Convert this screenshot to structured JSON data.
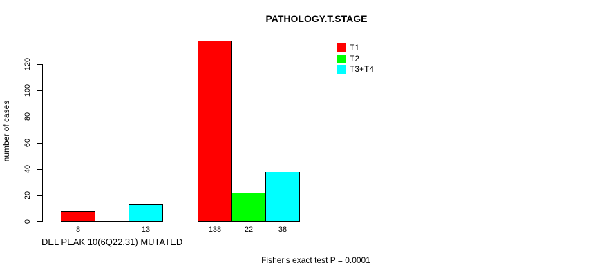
{
  "chart_data": {
    "type": "bar",
    "title": "PATHOLOGY.T.STAGE",
    "ylabel": "number of cases",
    "xlabel": "DEL PEAK 10(6Q22.31) MUTATED",
    "footer": "Fisher's exact test P = 0.0001",
    "y_ticks": [
      0,
      20,
      40,
      60,
      80,
      100,
      120
    ],
    "ylim": [
      0,
      138
    ],
    "grid": false,
    "legend_position": "top-right",
    "series": [
      {
        "name": "T1",
        "color": "#ff0000",
        "values": [
          8,
          138
        ]
      },
      {
        "name": "T2",
        "color": "#00ff00",
        "values": [
          0,
          22
        ]
      },
      {
        "name": "T3+T4",
        "color": "#00ffff",
        "values": [
          13,
          38
        ]
      }
    ],
    "value_labels": [
      [
        "8",
        "",
        "13"
      ],
      [
        "138",
        "22",
        "38"
      ]
    ]
  },
  "colors": {
    "background": "#ffffff",
    "bar_border": "#000000",
    "text": "#000000"
  }
}
